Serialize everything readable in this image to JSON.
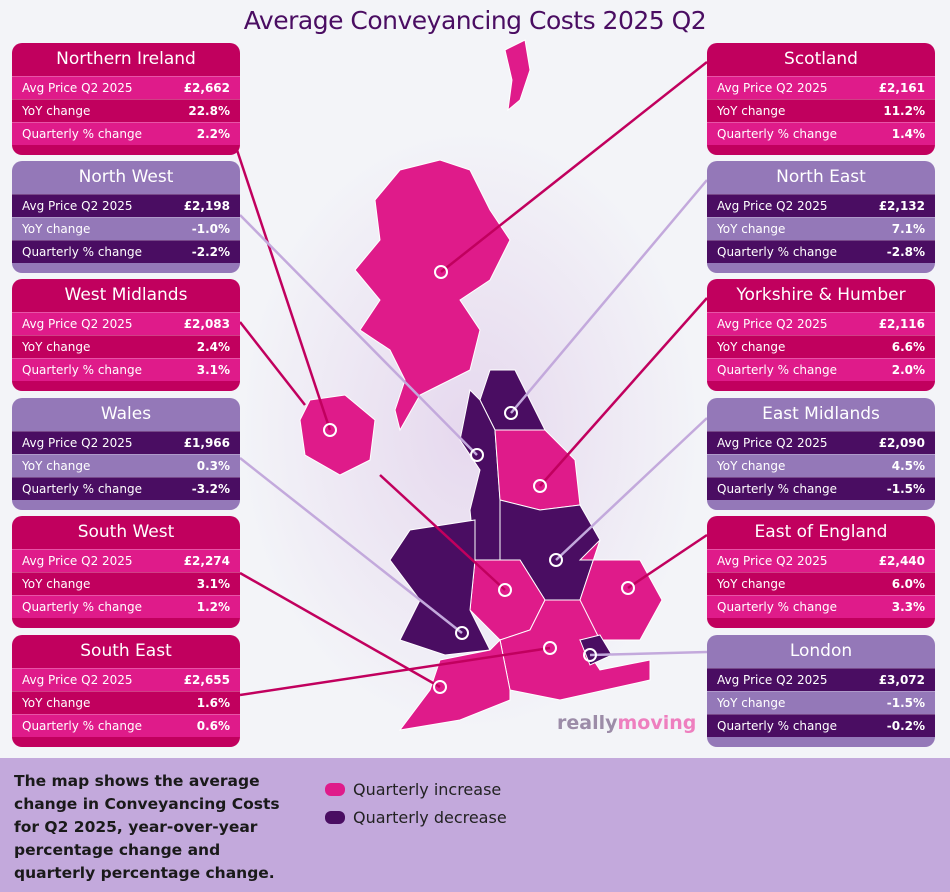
{
  "title": "Average Conveyancing Costs 2025 Q2",
  "row_labels": {
    "price": "Avg Price Q2 2025",
    "yoy": "YoY change",
    "qtr": "Quarterly % change"
  },
  "colors": {
    "increase": "#df1b8a",
    "decrease": "#4a0d62",
    "header_increase": "#c1005e",
    "header_decrease": "#9478b8"
  },
  "regions": {
    "northern_ireland": {
      "name": "Northern Ireland",
      "price": "£2,662",
      "yoy": "22.8%",
      "qtr": "2.2%",
      "trend": "increase"
    },
    "north_west": {
      "name": "North West",
      "price": "£2,198",
      "yoy": "-1.0%",
      "qtr": "-2.2%",
      "trend": "decrease"
    },
    "west_midlands": {
      "name": "West Midlands",
      "price": "£2,083",
      "yoy": "2.4%",
      "qtr": "3.1%",
      "trend": "increase"
    },
    "wales": {
      "name": "Wales",
      "price": "£1,966",
      "yoy": "0.3%",
      "qtr": "-3.2%",
      "trend": "decrease"
    },
    "south_west": {
      "name": "South West",
      "price": "£2,274",
      "yoy": "3.1%",
      "qtr": "1.2%",
      "trend": "increase"
    },
    "south_east": {
      "name": "South East",
      "price": "£2,655",
      "yoy": "1.6%",
      "qtr": "0.6%",
      "trend": "increase"
    },
    "scotland": {
      "name": "Scotland",
      "price": "£2,161",
      "yoy": "11.2%",
      "qtr": "1.4%",
      "trend": "increase"
    },
    "north_east": {
      "name": "North East",
      "price": "£2,132",
      "yoy": "7.1%",
      "qtr": "-2.8%",
      "trend": "decrease"
    },
    "yorkshire_humber": {
      "name": "Yorkshire & Humber",
      "price": "£2,116",
      "yoy": "6.6%",
      "qtr": "2.0%",
      "trend": "increase"
    },
    "east_midlands": {
      "name": "East Midlands",
      "price": "£2,090",
      "yoy": "4.5%",
      "qtr": "-1.5%",
      "trend": "decrease"
    },
    "east_of_england": {
      "name": "East of England",
      "price": "£2,440",
      "yoy": "6.0%",
      "qtr": "3.3%",
      "trend": "increase"
    },
    "london": {
      "name": "London",
      "price": "£3,072",
      "yoy": "-1.5%",
      "qtr": "-0.2%",
      "trend": "decrease"
    }
  },
  "footer": {
    "description": "The map shows the average change in Conveyancing Costs for Q2 2025, year-over-year percentage change and quarterly percentage change.",
    "legend_increase": "Quarterly  increase",
    "legend_decrease": "Quarterly decrease"
  },
  "logo": {
    "part1": "really",
    "part2": "moving"
  }
}
